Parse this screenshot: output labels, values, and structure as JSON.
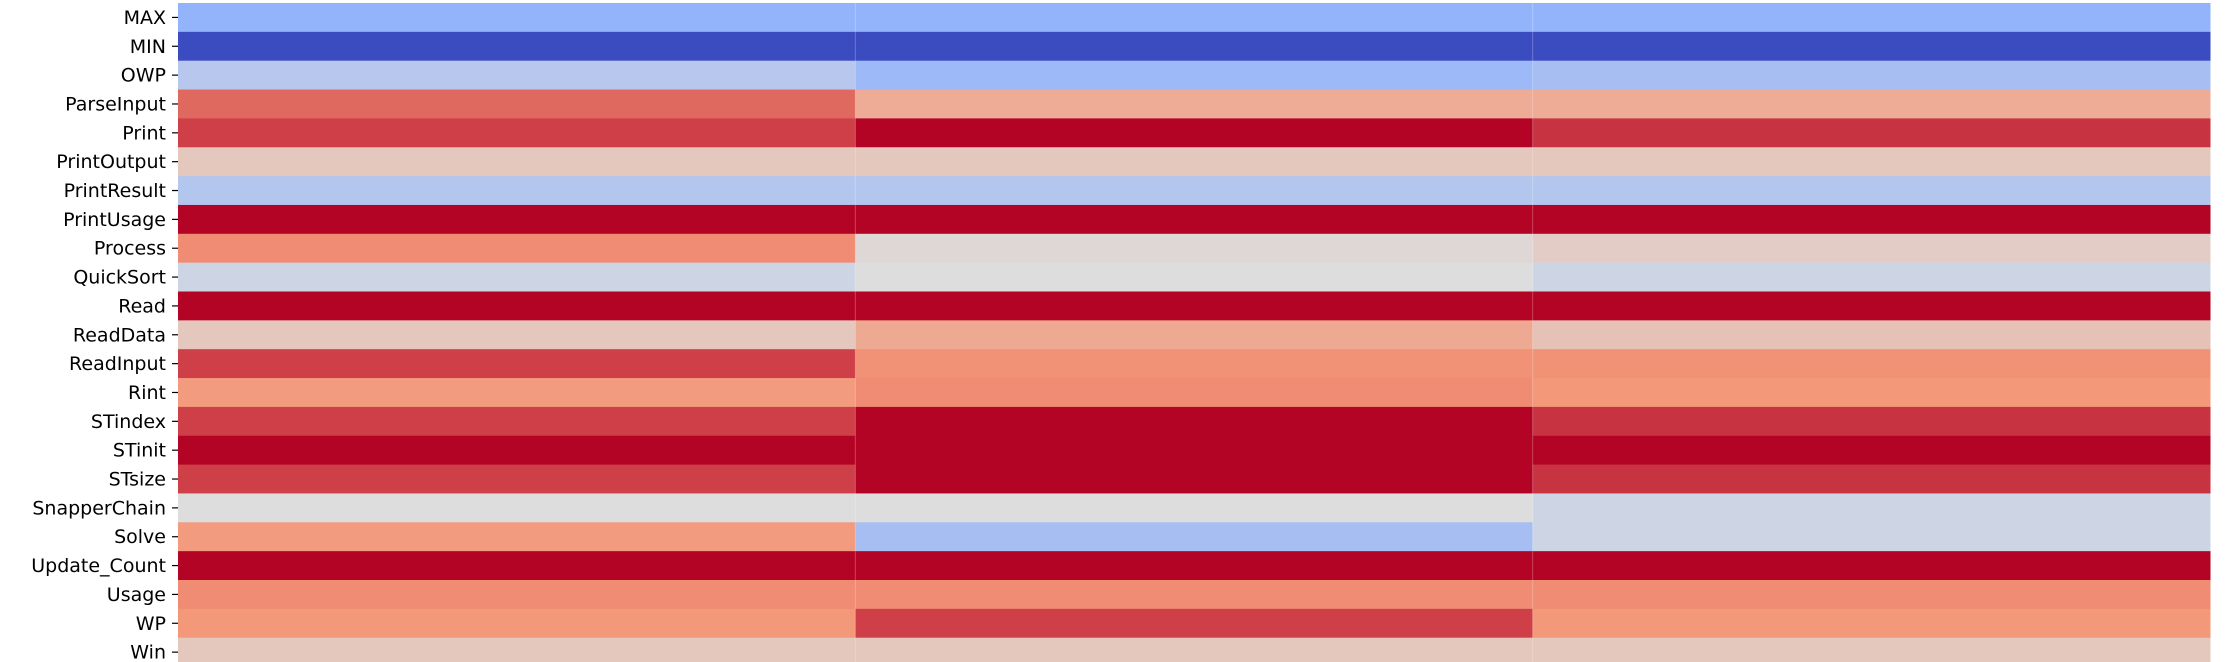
{
  "chart_data": {
    "type": "heatmap",
    "title": "",
    "xlabel": "",
    "ylabel": "",
    "rows": [
      "MAX",
      "MIN",
      "OWP",
      "ParseInput",
      "Print",
      "PrintOutput",
      "PrintResult",
      "PrintUsage",
      "Process",
      "QuickSort",
      "Read",
      "ReadData",
      "ReadInput",
      "Rint",
      "STindex",
      "STinit",
      "STsize",
      "SnapperChain",
      "Solve",
      "Update_Count",
      "Usage",
      "WP",
      "Win"
    ],
    "columns": 3,
    "colormap": "coolwarm",
    "value_range": [
      0,
      1
    ],
    "values": [
      [
        0.27,
        0.27,
        0.27
      ],
      [
        0.0,
        0.0,
        0.0
      ],
      [
        0.38,
        0.3,
        0.33
      ],
      [
        0.83,
        0.68,
        0.68
      ],
      [
        0.9,
        1.0,
        0.92
      ],
      [
        0.58,
        0.58,
        0.58
      ],
      [
        0.37,
        0.37,
        0.37
      ],
      [
        1.0,
        1.0,
        1.0
      ],
      [
        0.77,
        0.52,
        0.56
      ],
      [
        0.45,
        0.5,
        0.45
      ],
      [
        1.0,
        1.0,
        1.0
      ],
      [
        0.58,
        0.69,
        0.6
      ],
      [
        0.9,
        0.76,
        0.76
      ],
      [
        0.74,
        0.77,
        0.75
      ],
      [
        0.9,
        1.0,
        0.92
      ],
      [
        1.0,
        1.0,
        1.0
      ],
      [
        0.9,
        1.0,
        0.92
      ],
      [
        0.5,
        0.5,
        0.45
      ],
      [
        0.74,
        0.33,
        0.45
      ],
      [
        1.0,
        1.0,
        1.0
      ],
      [
        0.77,
        0.77,
        0.77
      ],
      [
        0.75,
        0.9,
        0.75
      ],
      [
        0.58,
        0.58,
        0.58
      ]
    ]
  }
}
